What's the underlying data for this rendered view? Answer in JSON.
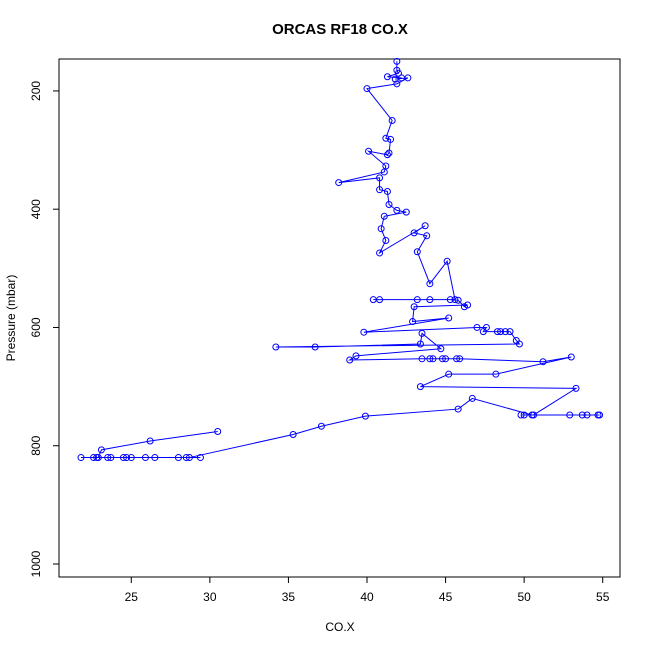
{
  "chart_data": {
    "type": "line",
    "markers": true,
    "title": "ORCAS RF18 CO.X",
    "x_label": "CO.X",
    "y_label": "Pressure (mbar)",
    "color": "#0000ff",
    "x": [
      41.9,
      41.9,
      42.0,
      41.3,
      42.2,
      41.8,
      42.6,
      41.9,
      40.0,
      41.6,
      41.2,
      41.5,
      41.4,
      41.3,
      40.1,
      41.2,
      41.1,
      38.2,
      40.8,
      40.8,
      41.3,
      41.4,
      41.9,
      42.5,
      41.1,
      40.9,
      41.2,
      40.8,
      43.7,
      43.0,
      43.8,
      43.2,
      44.0,
      45.1,
      45.6,
      40.4,
      40.8,
      43.2,
      44.0,
      45.3,
      45.8,
      46.2,
      46.4,
      43.0,
      42.9,
      45.2,
      39.8,
      47.0,
      47.6,
      47.4,
      48.3,
      48.5,
      48.8,
      49.1,
      49.5,
      49.7,
      34.2,
      36.7,
      43.4,
      43.5,
      44.7,
      39.3,
      38.9,
      43.5,
      44.0,
      44.2,
      44.8,
      45.0,
      45.7,
      45.9,
      51.2,
      53.0,
      48.2,
      45.2,
      43.4,
      53.3,
      50.6,
      49.8,
      50.0,
      52.9,
      53.7,
      54.0,
      54.7,
      54.8,
      50.5,
      46.7,
      45.8,
      39.9,
      37.1,
      35.3,
      28.7,
      29.4,
      28.5,
      28.0,
      26.5,
      25.9,
      25.0,
      24.7,
      24.5,
      23.7,
      23.5,
      22.8,
      22.6,
      21.8,
      22.9,
      23.1,
      26.2,
      30.5
    ],
    "values": [
      150,
      165,
      170,
      176,
      178,
      180,
      178,
      188,
      196,
      250,
      280,
      282,
      305,
      308,
      302,
      327,
      337,
      355,
      347,
      367,
      370,
      392,
      402,
      405,
      412,
      433,
      453,
      474,
      428,
      440,
      445,
      472,
      526,
      488,
      553,
      553,
      553,
      553,
      553,
      553,
      554,
      565,
      562,
      565,
      590,
      584,
      608,
      600,
      600,
      607,
      607,
      607,
      607,
      607,
      622,
      628,
      633,
      633,
      628,
      610,
      636,
      648,
      655,
      653,
      653,
      653,
      653,
      653,
      653,
      653,
      658,
      650,
      679,
      679,
      700,
      703,
      748,
      748,
      748,
      748,
      748,
      748,
      748,
      748,
      748,
      720,
      738,
      750,
      767,
      781,
      820,
      820,
      820,
      820,
      820,
      820,
      820,
      820,
      820,
      820,
      820,
      820,
      820,
      820,
      820,
      807,
      792,
      776
    ],
    "xlim": [
      20.4,
      56.1
    ],
    "xticks": [
      25,
      30,
      35,
      40,
      45,
      50,
      55
    ],
    "ylim": [
      1022,
      146
    ],
    "yticks": [
      200,
      400,
      600,
      800,
      1000
    ]
  }
}
